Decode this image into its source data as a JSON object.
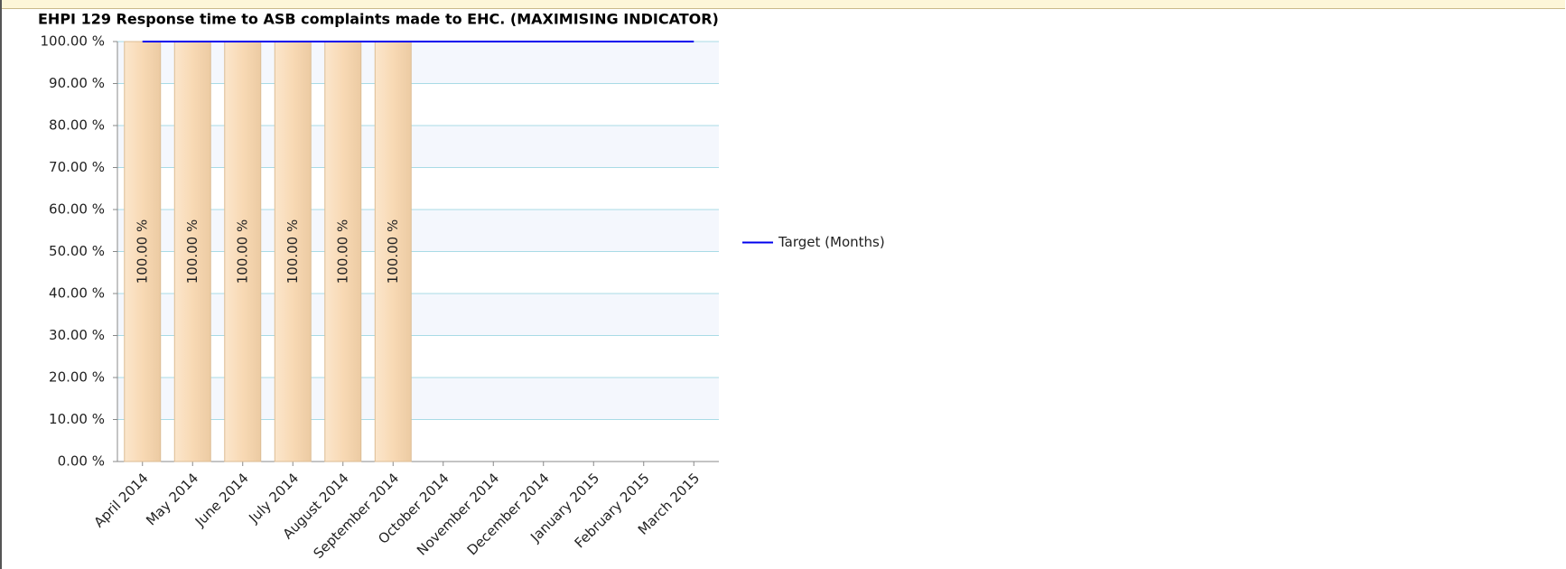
{
  "chart_data": {
    "type": "bar",
    "title": "EHPI 129 Response time to ASB complaints made to EHC. (MAXIMISING INDICATOR)",
    "categories": [
      "April 2014",
      "May 2014",
      "June 2014",
      "July 2014",
      "August 2014",
      "September 2014",
      "October 2014",
      "November 2014",
      "December 2014",
      "January 2015",
      "February 2015",
      "March 2015"
    ],
    "series": [
      {
        "color": "#f8d9b4",
        "values": [
          100,
          100,
          100,
          100,
          100,
          100,
          null,
          null,
          null,
          null,
          null,
          null
        ],
        "value_labels": [
          "100.00 %",
          "100.00 %",
          "100.00 %",
          "100.00 %",
          "100.00 %",
          "100.00 %",
          null,
          null,
          null,
          null,
          null,
          null
        ]
      },
      {
        "name": "Target (Months)",
        "type": "line",
        "color": "#0000ee",
        "values": [
          100,
          100,
          100,
          100,
          100,
          100,
          100,
          100,
          100,
          100,
          100,
          100
        ]
      }
    ],
    "ylim": [
      0,
      100
    ],
    "yticks": [
      {
        "value": 0,
        "label": "0.00 %"
      },
      {
        "value": 10,
        "label": "10.00 %"
      },
      {
        "value": 20,
        "label": "20.00 %"
      },
      {
        "value": 30,
        "label": "30.00 %"
      },
      {
        "value": 40,
        "label": "40.00 %"
      },
      {
        "value": 50,
        "label": "50.00 %"
      },
      {
        "value": 60,
        "label": "60.00 %"
      },
      {
        "value": 70,
        "label": "70.00 %"
      },
      {
        "value": 80,
        "label": "80.00 %"
      },
      {
        "value": 90,
        "label": "90.00 %"
      },
      {
        "value": 100,
        "label": "100.00 %"
      }
    ],
    "grid": true,
    "legend": "right"
  }
}
